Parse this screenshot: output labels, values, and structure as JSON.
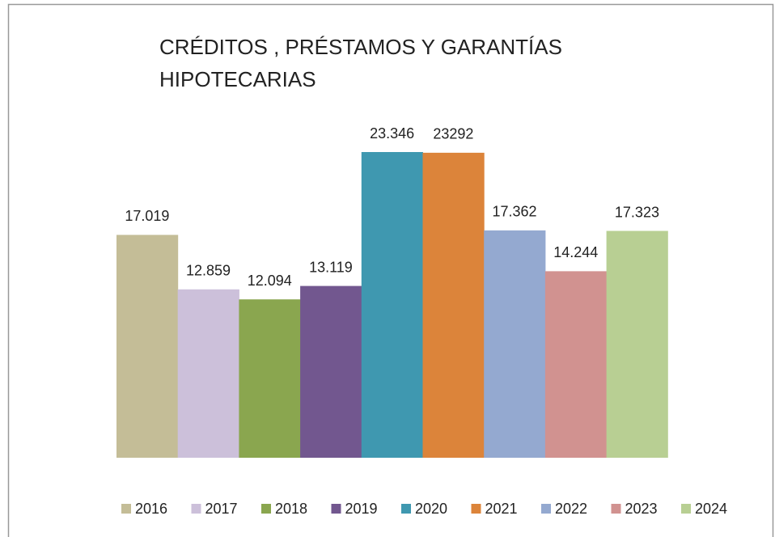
{
  "chart_data": {
    "type": "bar",
    "title": "CRÉDITOS , PRÉSTAMOS Y GARANTÍAS HIPOTECARIAS",
    "series": [
      {
        "name": "2016",
        "color": "#c4bd97",
        "values": [
          17019
        ],
        "value_labels": [
          "17.019"
        ]
      },
      {
        "name": "2017",
        "color": "#ccc0da",
        "values": [
          12859
        ],
        "value_labels": [
          "12.859"
        ]
      },
      {
        "name": "2018",
        "color": "#8aa64f",
        "values": [
          12094
        ],
        "value_labels": [
          "12.094"
        ]
      },
      {
        "name": "2019",
        "color": "#72578f",
        "values": [
          13119
        ],
        "value_labels": [
          "13.119"
        ]
      },
      {
        "name": "2020",
        "color": "#3f98b0",
        "values": [
          23346
        ],
        "value_labels": [
          "23.346"
        ]
      },
      {
        "name": "2021",
        "color": "#dc843a",
        "values": [
          23292
        ],
        "value_labels": [
          "23292"
        ]
      },
      {
        "name": "2022",
        "color": "#94a9d0",
        "values": [
          17362
        ],
        "value_labels": [
          "17.362"
        ]
      },
      {
        "name": "2023",
        "color": "#d19290",
        "values": [
          14244
        ],
        "value_labels": [
          "14.244"
        ]
      },
      {
        "name": "2024",
        "color": "#b8cf93",
        "values": [
          17323
        ],
        "value_labels": [
          "17.323"
        ]
      }
    ]
  }
}
